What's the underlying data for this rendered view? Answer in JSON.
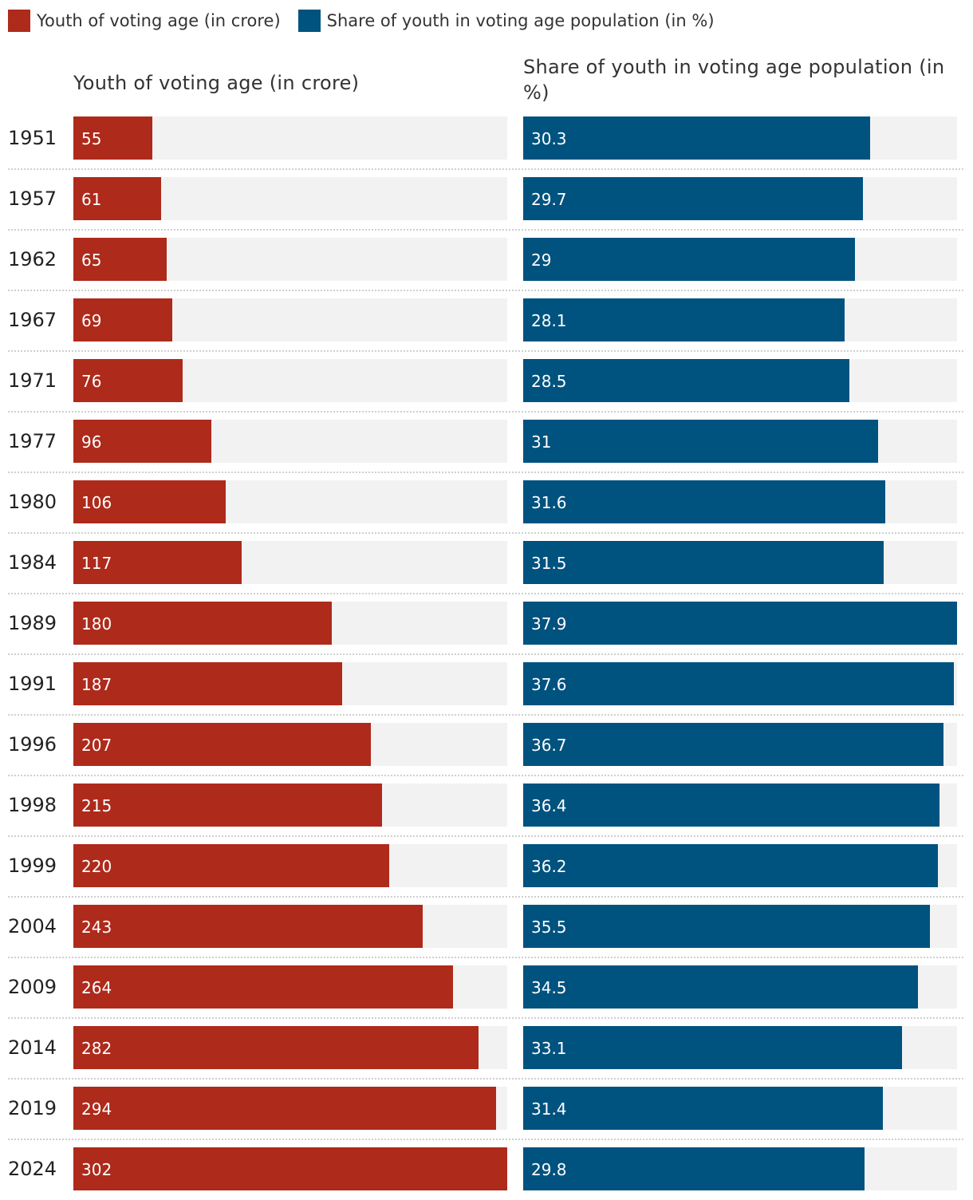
{
  "legend": [
    {
      "label": "Youth of voting age (in crore)",
      "color": "#ae2a1b"
    },
    {
      "label": "Share of youth in voting age population (in %)",
      "color": "#00527f"
    }
  ],
  "chart_data": {
    "type": "bar",
    "orientation": "horizontal",
    "categories": [
      "1951",
      "1957",
      "1962",
      "1967",
      "1971",
      "1977",
      "1980",
      "1984",
      "1989",
      "1991",
      "1996",
      "1998",
      "1999",
      "2004",
      "2009",
      "2014",
      "2019",
      "2024"
    ],
    "series": [
      {
        "name": "Youth of voting age (in crore)",
        "title": "Youth of voting age (in crore)",
        "color": "#ae2a1b",
        "xlim": [
          0,
          302
        ],
        "values": [
          55,
          61,
          65,
          69,
          76,
          96,
          106,
          117,
          180,
          187,
          207,
          215,
          220,
          243,
          264,
          282,
          294,
          302
        ]
      },
      {
        "name": "Share of youth in voting age population (in %)",
        "title": "Share of youth in voting age population (in %)",
        "color": "#00527f",
        "xlim": [
          0,
          37.9
        ],
        "values": [
          30.3,
          29.7,
          29,
          28.1,
          28.5,
          31,
          31.6,
          31.5,
          37.9,
          37.6,
          36.7,
          36.4,
          36.2,
          35.5,
          34.5,
          33.1,
          31.4,
          29.8
        ]
      }
    ]
  }
}
